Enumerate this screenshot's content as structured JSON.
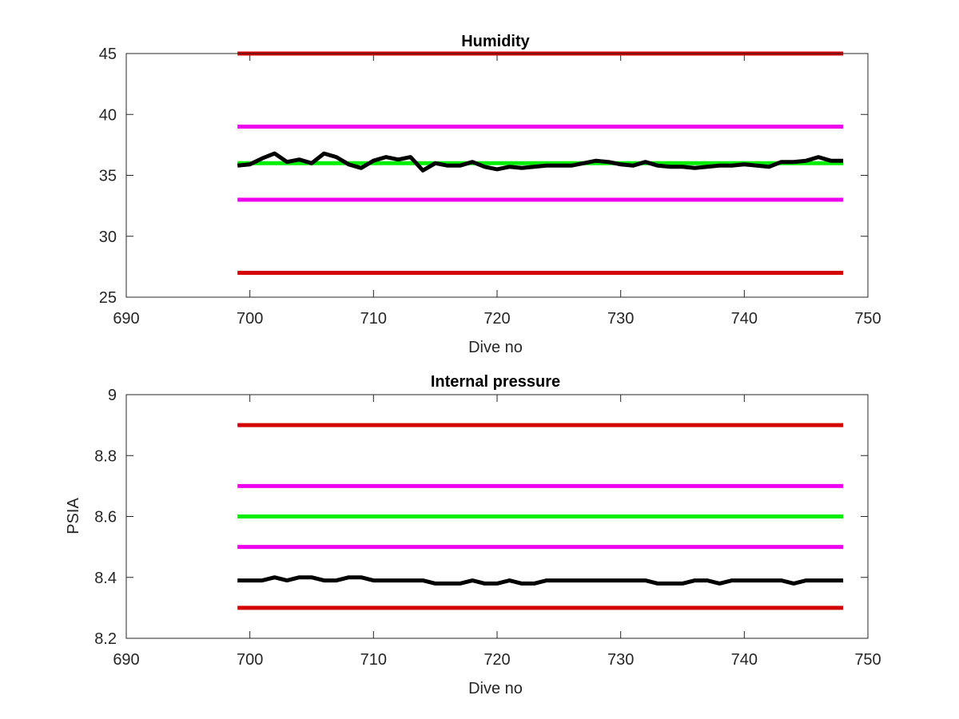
{
  "chart_data": [
    {
      "type": "line",
      "title": "Humidity",
      "xlabel": "Dive no",
      "ylabel": "",
      "xlim": [
        690,
        750
      ],
      "ylim": [
        25,
        45
      ],
      "xticks": [
        690,
        700,
        710,
        720,
        730,
        740,
        750
      ],
      "yticks": [
        25,
        30,
        35,
        40,
        45
      ],
      "xtick_labels": [
        "690",
        "700",
        "710",
        "720",
        "730",
        "740",
        "750"
      ],
      "ytick_labels": [
        "25",
        "30",
        "35",
        "40",
        "45"
      ],
      "grid": false,
      "series": [
        {
          "color": "#d40000",
          "x": [
            699,
            748
          ],
          "y": [
            45,
            45
          ]
        },
        {
          "color": "#ee00ee",
          "x": [
            699,
            748
          ],
          "y": [
            39,
            39
          ]
        },
        {
          "color": "#00ee00",
          "x": [
            699,
            748
          ],
          "y": [
            36,
            36
          ]
        },
        {
          "color": "#ee00ee",
          "x": [
            699,
            748
          ],
          "y": [
            33,
            33
          ]
        },
        {
          "color": "#d40000",
          "x": [
            699,
            748
          ],
          "y": [
            27,
            27
          ]
        },
        {
          "color": "#000000",
          "x": [
            699,
            700,
            701,
            702,
            703,
            704,
            705,
            706,
            707,
            708,
            709,
            710,
            711,
            712,
            713,
            714,
            715,
            716,
            717,
            718,
            719,
            720,
            721,
            722,
            723,
            724,
            725,
            726,
            727,
            728,
            729,
            730,
            731,
            732,
            733,
            734,
            735,
            736,
            737,
            738,
            739,
            740,
            741,
            742,
            743,
            744,
            745,
            746,
            747,
            748
          ],
          "y": [
            35.8,
            35.9,
            36.4,
            36.8,
            36.1,
            36.3,
            36.0,
            36.8,
            36.5,
            35.9,
            35.6,
            36.2,
            36.5,
            36.3,
            36.5,
            35.4,
            36.0,
            35.8,
            35.8,
            36.1,
            35.7,
            35.5,
            35.7,
            35.6,
            35.7,
            35.8,
            35.8,
            35.8,
            36.0,
            36.2,
            36.1,
            35.9,
            35.8,
            36.1,
            35.8,
            35.7,
            35.7,
            35.6,
            35.7,
            35.8,
            35.8,
            35.9,
            35.8,
            35.7,
            36.1,
            36.1,
            36.2,
            36.5,
            36.2,
            36.2
          ]
        }
      ]
    },
    {
      "type": "line",
      "title": "Internal pressure",
      "xlabel": "Dive no",
      "ylabel": "PSIA",
      "xlim": [
        690,
        750
      ],
      "ylim": [
        8.2,
        9
      ],
      "xticks": [
        690,
        700,
        710,
        720,
        730,
        740,
        750
      ],
      "yticks": [
        8.2,
        8.4,
        8.6,
        8.8,
        9
      ],
      "xtick_labels": [
        "690",
        "700",
        "710",
        "720",
        "730",
        "740",
        "750"
      ],
      "ytick_labels": [
        "8.2",
        "8.4",
        "8.6",
        "8.8",
        "9"
      ],
      "grid": false,
      "series": [
        {
          "color": "#d40000",
          "x": [
            699,
            748
          ],
          "y": [
            8.9,
            8.9
          ]
        },
        {
          "color": "#ee00ee",
          "x": [
            699,
            748
          ],
          "y": [
            8.7,
            8.7
          ]
        },
        {
          "color": "#00ee00",
          "x": [
            699,
            748
          ],
          "y": [
            8.6,
            8.6
          ]
        },
        {
          "color": "#ee00ee",
          "x": [
            699,
            748
          ],
          "y": [
            8.5,
            8.5
          ]
        },
        {
          "color": "#d40000",
          "x": [
            699,
            748
          ],
          "y": [
            8.3,
            8.3
          ]
        },
        {
          "color": "#000000",
          "x": [
            699,
            700,
            701,
            702,
            703,
            704,
            705,
            706,
            707,
            708,
            709,
            710,
            711,
            712,
            713,
            714,
            715,
            716,
            717,
            718,
            719,
            720,
            721,
            722,
            723,
            724,
            725,
            726,
            727,
            728,
            729,
            730,
            731,
            732,
            733,
            734,
            735,
            736,
            737,
            738,
            739,
            740,
            741,
            742,
            743,
            744,
            745,
            746,
            747,
            748
          ],
          "y": [
            8.39,
            8.39,
            8.39,
            8.4,
            8.39,
            8.4,
            8.4,
            8.39,
            8.39,
            8.4,
            8.4,
            8.39,
            8.39,
            8.39,
            8.39,
            8.39,
            8.38,
            8.38,
            8.38,
            8.39,
            8.38,
            8.38,
            8.39,
            8.38,
            8.38,
            8.39,
            8.39,
            8.39,
            8.39,
            8.39,
            8.39,
            8.39,
            8.39,
            8.39,
            8.38,
            8.38,
            8.38,
            8.39,
            8.39,
            8.38,
            8.39,
            8.39,
            8.39,
            8.39,
            8.39,
            8.38,
            8.39,
            8.39,
            8.39,
            8.39
          ]
        }
      ]
    }
  ]
}
